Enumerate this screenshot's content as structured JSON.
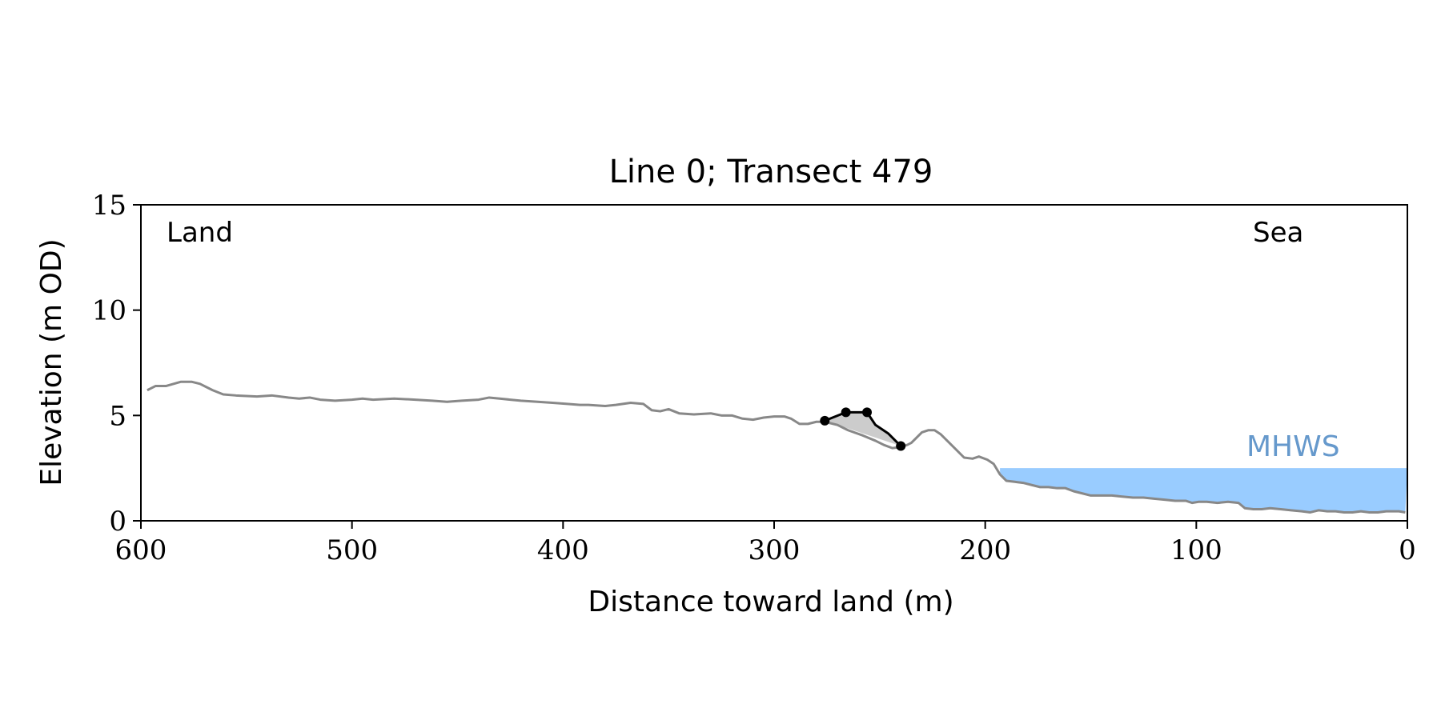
{
  "chart_data": {
    "type": "line",
    "title": "Line 0; Transect 479",
    "xlabel": "Distance toward land (m)",
    "ylabel": "Elevation (m OD)",
    "xlim": [
      600,
      0
    ],
    "ylim": [
      0,
      15
    ],
    "x_reversed": true,
    "xticks": [
      "600",
      "500",
      "400",
      "300",
      "200",
      "100",
      "0"
    ],
    "yticks": [
      "0",
      "5",
      "10",
      "15"
    ],
    "grid": false,
    "annotations": {
      "land": "Land",
      "sea": "Sea",
      "mhws": "MHWS"
    },
    "colors": {
      "profile": "#888888",
      "feature": "#000000",
      "feature_fill": "#cccccc",
      "water": "#99ccff",
      "mhws_label": "#6699cc"
    },
    "mhws_level": 2.5,
    "water_extent_x": [
      193,
      0
    ],
    "profile": {
      "x": [
        597,
        593,
        588,
        581,
        576,
        572,
        566,
        561,
        555,
        545,
        538,
        530,
        525,
        520,
        515,
        508,
        500,
        495,
        490,
        480,
        470,
        462,
        455,
        448,
        440,
        435,
        430,
        425,
        420,
        412,
        405,
        398,
        392,
        388,
        380,
        375,
        368,
        362,
        358,
        354,
        350,
        345,
        338,
        330,
        325,
        320,
        315,
        310,
        305,
        300,
        295,
        292,
        288,
        284,
        280,
        276,
        270,
        265,
        258,
        252,
        248,
        244,
        240,
        237,
        235,
        232,
        230,
        227,
        224,
        221,
        218,
        214,
        210,
        206,
        203,
        199,
        196,
        193,
        190,
        186,
        182,
        178,
        174,
        170,
        166,
        162,
        158,
        154,
        150,
        145,
        140,
        135,
        130,
        125,
        120,
        115,
        110,
        105,
        102,
        99,
        95,
        90,
        85,
        80,
        77,
        73,
        69,
        65,
        60,
        55,
        50,
        46,
        42,
        38,
        34,
        30,
        26,
        22,
        18,
        14,
        10,
        7,
        4,
        1
      ],
      "y": [
        6.2,
        6.4,
        6.4,
        6.6,
        6.6,
        6.5,
        6.2,
        6.0,
        5.95,
        5.9,
        5.95,
        5.85,
        5.8,
        5.85,
        5.75,
        5.7,
        5.75,
        5.8,
        5.75,
        5.8,
        5.75,
        5.7,
        5.65,
        5.7,
        5.75,
        5.85,
        5.8,
        5.75,
        5.7,
        5.65,
        5.6,
        5.55,
        5.5,
        5.5,
        5.45,
        5.5,
        5.6,
        5.55,
        5.25,
        5.2,
        5.3,
        5.1,
        5.05,
        5.1,
        5.0,
        5.0,
        4.85,
        4.8,
        4.9,
        4.95,
        4.95,
        4.85,
        4.6,
        4.6,
        4.7,
        4.7,
        4.55,
        4.3,
        4.05,
        3.8,
        3.6,
        3.45,
        3.5,
        3.6,
        3.7,
        4.0,
        4.2,
        4.3,
        4.3,
        4.1,
        3.8,
        3.4,
        3.0,
        2.95,
        3.05,
        2.9,
        2.7,
        2.2,
        1.9,
        1.85,
        1.8,
        1.7,
        1.6,
        1.6,
        1.55,
        1.55,
        1.4,
        1.3,
        1.2,
        1.2,
        1.2,
        1.15,
        1.1,
        1.1,
        1.05,
        1.0,
        0.95,
        0.95,
        0.85,
        0.9,
        0.9,
        0.85,
        0.9,
        0.85,
        0.6,
        0.55,
        0.55,
        0.6,
        0.55,
        0.5,
        0.45,
        0.4,
        0.5,
        0.45,
        0.45,
        0.4,
        0.4,
        0.45,
        0.4,
        0.4,
        0.45,
        0.45,
        0.45,
        0.4
      ]
    },
    "feature": {
      "points": [
        {
          "x": 276,
          "y": 4.75
        },
        {
          "x": 266,
          "y": 5.15
        },
        {
          "x": 256,
          "y": 5.15
        },
        {
          "x": 240,
          "y": 3.55
        }
      ],
      "curve_x": [
        276,
        266,
        256,
        252,
        246,
        240
      ],
      "curve_y": [
        4.75,
        5.15,
        5.15,
        4.55,
        4.15,
        3.55
      ]
    }
  }
}
